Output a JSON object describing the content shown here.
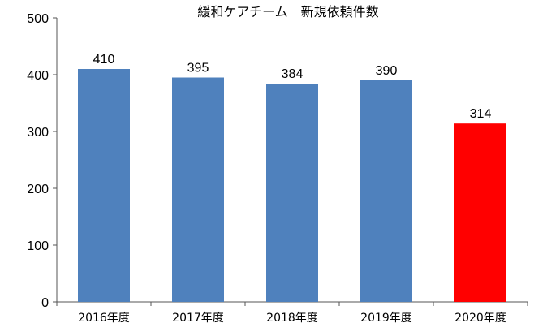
{
  "chart_data": {
    "type": "bar",
    "title": "緩和ケアチーム　新規依頼件数",
    "xlabel": "",
    "ylabel": "",
    "categories": [
      "2016年度",
      "2017年度",
      "2018年度",
      "2019年度",
      "2020年度"
    ],
    "values": [
      410,
      395,
      384,
      390,
      314
    ],
    "colors": [
      "#4f81bd",
      "#4f81bd",
      "#4f81bd",
      "#4f81bd",
      "#ff0000"
    ],
    "ylim": [
      0,
      500
    ],
    "yticks": [
      0,
      100,
      200,
      300,
      400,
      500
    ],
    "grid": false,
    "legend": "none",
    "data_labels": true
  }
}
